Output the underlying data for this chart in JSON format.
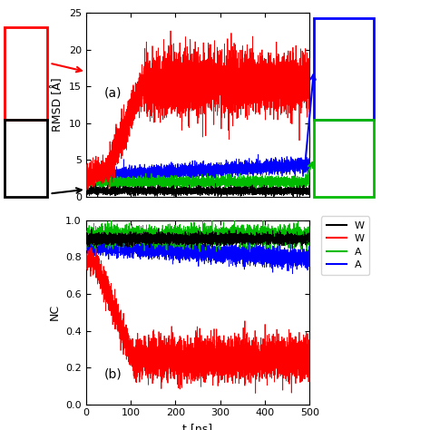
{
  "title_a": "(a)",
  "title_b": "(b)",
  "xlabel": "t [ns]",
  "ylabel_a": "RMSD [Å]",
  "ylabel_b": "NC",
  "xlim": [
    0,
    500
  ],
  "ylim_a": [
    0,
    25
  ],
  "ylim_b": [
    0,
    1
  ],
  "xticks": [
    0,
    100,
    200,
    300,
    400,
    500
  ],
  "yticks_a": [
    0,
    5,
    10,
    15,
    20,
    25
  ],
  "yticks_b": [
    0,
    0.2,
    0.4,
    0.6,
    0.8,
    1.0
  ],
  "colors": {
    "black": "#000000",
    "red": "#ff0000",
    "green": "#00bb00",
    "blue": "#0000ff"
  },
  "legend_labels": [
    "W",
    "W",
    "A",
    "A"
  ],
  "seed": 42,
  "n_points": 5000,
  "fig_width": 4.74,
  "fig_height": 4.74,
  "dpi": 100,
  "lw": 0.6,
  "arrow_red_color": "#ff0000",
  "arrow_black_color": "#000000",
  "arrow_blue_color": "#0000ff",
  "arrow_green_color": "#00bb00",
  "rect_red_color": "#ff0000",
  "rect_black_color": "#000000",
  "rect_blue_color": "#0000ff",
  "rect_green_color": "#00bb00"
}
